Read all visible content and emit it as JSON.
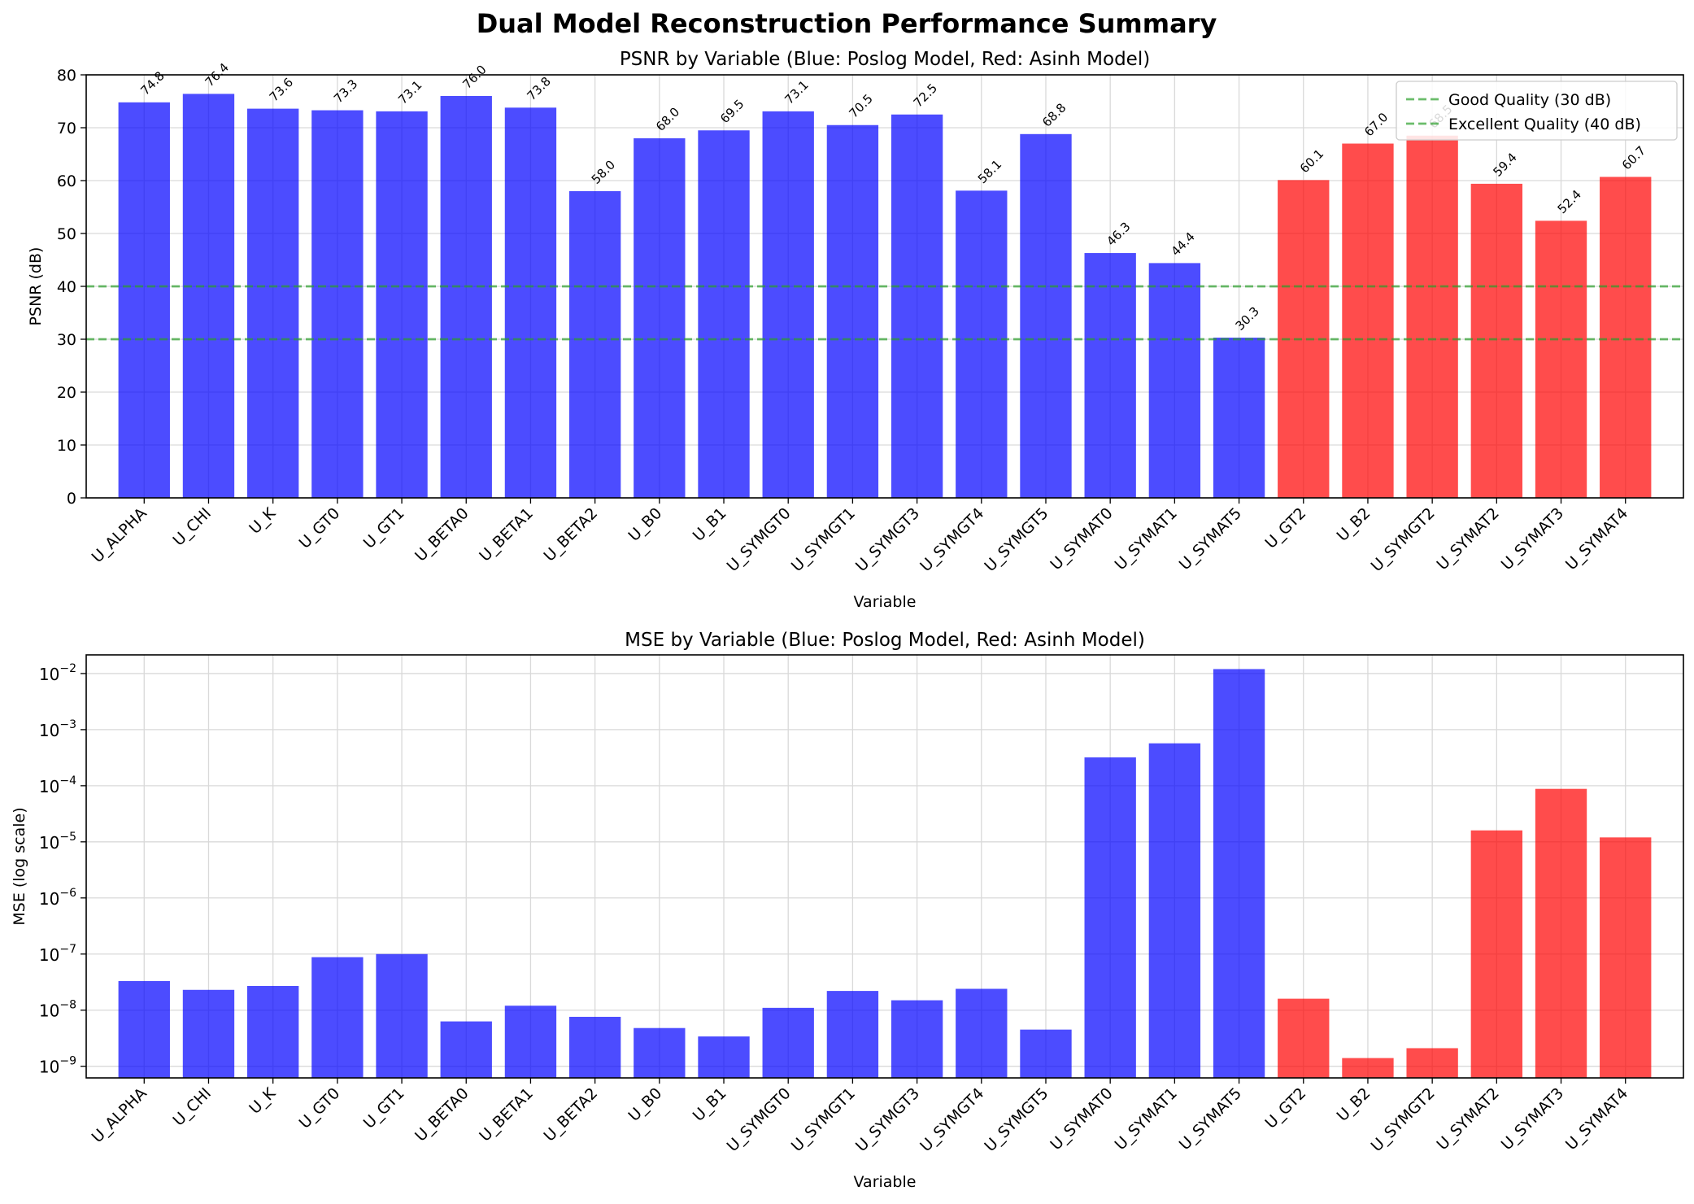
{
  "suptitle": "Dual Model Reconstruction Performance Summary",
  "colors": {
    "poslog": "#0000ff",
    "asinh": "#ff0000",
    "threshold": "#2ca02c"
  },
  "chart_data": [
    {
      "type": "bar",
      "title": "PSNR by Variable (Blue: Poslog Model, Red: Asinh Model)",
      "xlabel": "Variable",
      "ylabel": "PSNR (dB)",
      "ylim": [
        0,
        80
      ],
      "yticks": [
        0,
        10,
        20,
        30,
        40,
        50,
        60,
        70,
        80
      ],
      "grid": true,
      "legend_position": "top-right",
      "categories": [
        "U_ALPHA",
        "U_CHI",
        "U_K",
        "U_GT0",
        "U_GT1",
        "U_BETA0",
        "U_BETA1",
        "U_BETA2",
        "U_B0",
        "U_B1",
        "U_SYMGT0",
        "U_SYMGT1",
        "U_SYMGT3",
        "U_SYMGT4",
        "U_SYMGT5",
        "U_SYMAT0",
        "U_SYMAT1",
        "U_SYMAT5",
        "U_GT2",
        "U_B2",
        "U_SYMGT2",
        "U_SYMAT2",
        "U_SYMAT3",
        "U_SYMAT4"
      ],
      "models": [
        "poslog",
        "poslog",
        "poslog",
        "poslog",
        "poslog",
        "poslog",
        "poslog",
        "poslog",
        "poslog",
        "poslog",
        "poslog",
        "poslog",
        "poslog",
        "poslog",
        "poslog",
        "poslog",
        "poslog",
        "poslog",
        "asinh",
        "asinh",
        "asinh",
        "asinh",
        "asinh",
        "asinh"
      ],
      "values": [
        74.8,
        76.4,
        73.6,
        73.3,
        73.1,
        76.0,
        73.8,
        58.0,
        68.0,
        69.5,
        73.1,
        70.5,
        72.5,
        58.1,
        68.8,
        46.3,
        44.4,
        30.3,
        60.1,
        67.0,
        68.5,
        59.4,
        52.4,
        60.7
      ],
      "value_labels": [
        "74.8",
        "76.4",
        "73.6",
        "73.3",
        "73.1",
        "76.0",
        "73.8",
        "58.0",
        "68.0",
        "69.5",
        "73.1",
        "70.5",
        "72.5",
        "58.1",
        "68.8",
        "46.3",
        "44.4",
        "30.3",
        "60.1",
        "67.0",
        "68.5",
        "59.4",
        "52.4",
        "60.7"
      ],
      "reference_lines": [
        {
          "label": "Good Quality (30 dB)",
          "y": 30
        },
        {
          "label": "Excellent Quality (40 dB)",
          "y": 40
        }
      ]
    },
    {
      "type": "bar",
      "title": "MSE by Variable (Blue: Poslog Model, Red: Asinh Model)",
      "xlabel": "Variable",
      "ylabel": "MSE (log scale)",
      "yscale": "log",
      "ylim": [
        6.2e-10,
        0.0215
      ],
      "yticks": [
        {
          "value": 1e-09,
          "base": "10",
          "exp": "−9"
        },
        {
          "value": 1e-08,
          "base": "10",
          "exp": "−8"
        },
        {
          "value": 1e-07,
          "base": "10",
          "exp": "−7"
        },
        {
          "value": 1e-06,
          "base": "10",
          "exp": "−6"
        },
        {
          "value": 1e-05,
          "base": "10",
          "exp": "−5"
        },
        {
          "value": 0.0001,
          "base": "10",
          "exp": "−4"
        },
        {
          "value": 0.001,
          "base": "10",
          "exp": "−3"
        },
        {
          "value": 0.01,
          "base": "10",
          "exp": "−2"
        }
      ],
      "grid": true,
      "categories": [
        "U_ALPHA",
        "U_CHI",
        "U_K",
        "U_GT0",
        "U_GT1",
        "U_BETA0",
        "U_BETA1",
        "U_BETA2",
        "U_B0",
        "U_B1",
        "U_SYMGT0",
        "U_SYMGT1",
        "U_SYMGT3",
        "U_SYMGT4",
        "U_SYMGT5",
        "U_SYMAT0",
        "U_SYMAT1",
        "U_SYMAT5",
        "U_GT2",
        "U_B2",
        "U_SYMGT2",
        "U_SYMAT2",
        "U_SYMAT3",
        "U_SYMAT4"
      ],
      "models": [
        "poslog",
        "poslog",
        "poslog",
        "poslog",
        "poslog",
        "poslog",
        "poslog",
        "poslog",
        "poslog",
        "poslog",
        "poslog",
        "poslog",
        "poslog",
        "poslog",
        "poslog",
        "poslog",
        "poslog",
        "poslog",
        "asinh",
        "asinh",
        "asinh",
        "asinh",
        "asinh",
        "asinh"
      ],
      "values": [
        3.3e-08,
        2.3e-08,
        2.7e-08,
        8.8e-08,
        1e-07,
        6.3e-09,
        1.2e-08,
        7.6e-09,
        4.8e-09,
        3.4e-09,
        1.1e-08,
        2.2e-08,
        1.5e-08,
        2.4e-08,
        4.5e-09,
        0.00032,
        0.00057,
        0.012,
        1.6e-08,
        1.4e-09,
        2.1e-09,
        1.6e-05,
        8.8e-05,
        1.2e-05
      ]
    }
  ]
}
